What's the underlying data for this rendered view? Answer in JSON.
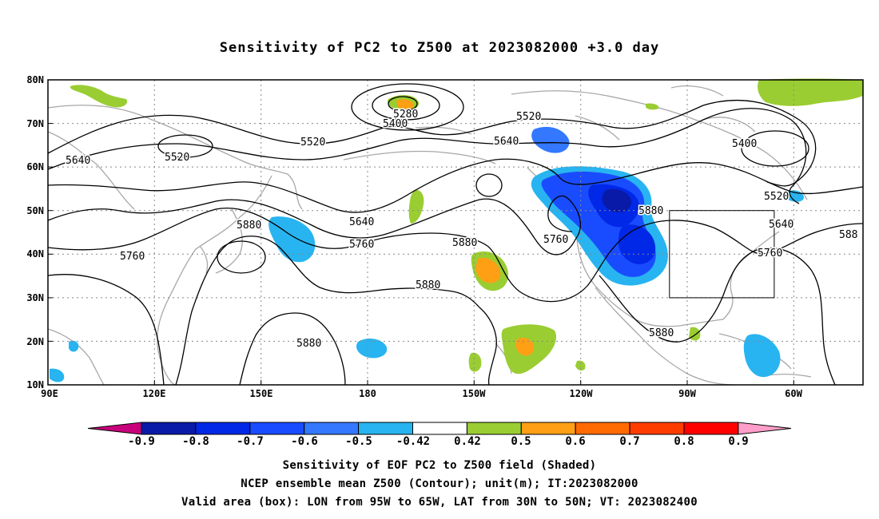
{
  "title": "Sensitivity of PC2 to Z500 at 2023082000 +3.0 day",
  "map": {
    "lat_labels": [
      "80N",
      "70N",
      "60N",
      "50N",
      "40N",
      "30N",
      "20N",
      "10N"
    ],
    "lon_labels": [
      "90E",
      "120E",
      "150E",
      "180",
      "150W",
      "120W",
      "90W",
      "60W"
    ],
    "valid_box": {
      "lon": [
        "95W",
        "65W"
      ],
      "lat": [
        "30N",
        "50N"
      ]
    },
    "contour_labels": [
      {
        "text": "5280"
      },
      {
        "text": "5400"
      },
      {
        "text": "5520"
      },
      {
        "text": "5520"
      },
      {
        "text": "5520"
      },
      {
        "text": "5640"
      },
      {
        "text": "5640"
      },
      {
        "text": "5400"
      },
      {
        "text": "5520"
      },
      {
        "text": "5640"
      },
      {
        "text": "5640"
      },
      {
        "text": "5880"
      },
      {
        "text": "5760"
      },
      {
        "text": "5760"
      },
      {
        "text": "5880"
      },
      {
        "text": "5760"
      },
      {
        "text": "5880"
      },
      {
        "text": "5880"
      },
      {
        "text": "5880"
      },
      {
        "text": "5760"
      },
      {
        "text": "588"
      }
    ]
  },
  "colorbar": {
    "labels": [
      "-0.9",
      "-0.8",
      "-0.7",
      "-0.6",
      "-0.5",
      "-0.42",
      "0.42",
      "0.5",
      "0.6",
      "0.7",
      "0.8",
      "0.9"
    ],
    "colors": [
      "#c8007a",
      "#0a1aa8",
      "#0028e6",
      "#1a4cff",
      "#3478ff",
      "#28b4f0",
      "#ffffff",
      "#9acd32",
      "#ff9f14",
      "#ff6a00",
      "#ff3c00",
      "#ff0000",
      "#ff9ec8"
    ]
  },
  "captions": {
    "line1": "Sensitivity of EOF PC2 to Z500 field (Shaded)",
    "line2": "NCEP ensemble mean Z500 (Contour); unit(m); IT:2023082000",
    "line3": "Valid area (box): LON from 95W to 65W, LAT from 30N to 50N; VT: 2023082400"
  }
}
